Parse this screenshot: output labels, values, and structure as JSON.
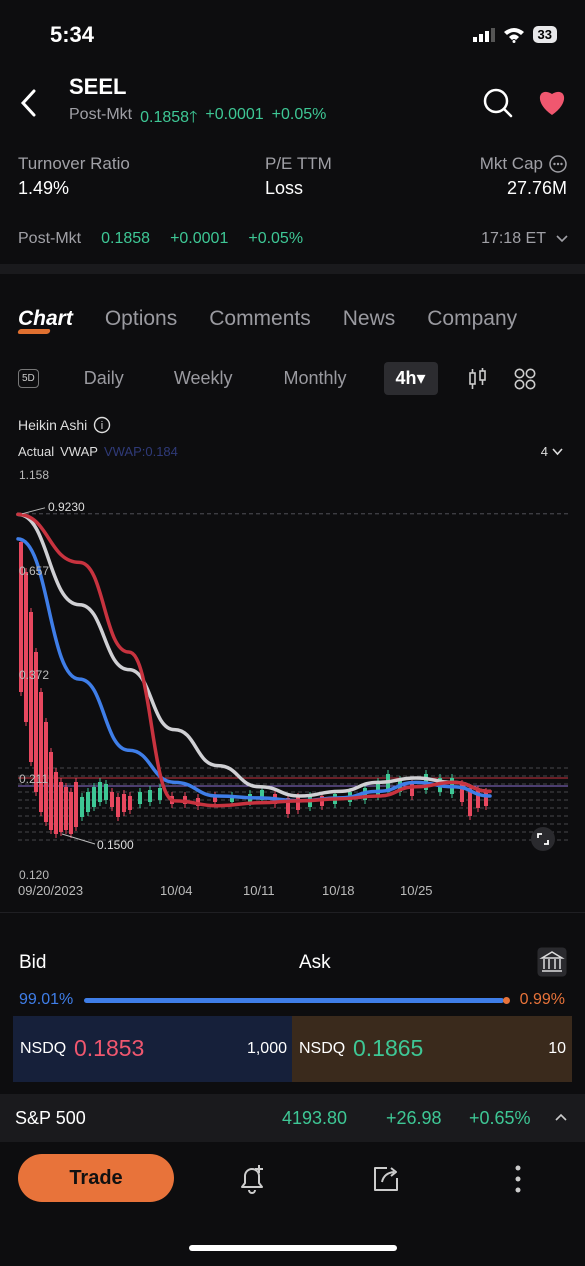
{
  "status": {
    "time": "5:34",
    "battery": "33"
  },
  "header": {
    "ticker": "SEEL",
    "post_label": "Post-Mkt",
    "post_price": "0.1858",
    "post_arrow": "🡑",
    "post_change": "+0.0001",
    "post_pct": "+0.05%"
  },
  "stats": {
    "turnover_label": "Turnover Ratio",
    "turnover_value": "1.49%",
    "pe_label": "P/E TTM",
    "pe_value": "Loss",
    "mktcap_label": "Mkt Cap",
    "mktcap_value": "27.76M"
  },
  "post_line": {
    "label": "Post-Mkt",
    "price": "0.1858",
    "change": "+0.0001",
    "pct": "+0.05%",
    "time": "17:18 ET"
  },
  "tabs": [
    "Chart",
    "Options",
    "Comments",
    "News",
    "Company"
  ],
  "periods": {
    "fiveday": "5D",
    "daily": "Daily",
    "weekly": "Weekly",
    "monthly": "Monthly",
    "active": "4h"
  },
  "chart_meta": {
    "type_label": "Heikin Ashi",
    "actual": "Actual",
    "vwap": "VWAP",
    "vwap_value": "VWAP:0.184",
    "count": "4"
  },
  "chart_data": {
    "type": "line",
    "y_ticks": [
      "1.158",
      "0.657",
      "0.372",
      "0.211",
      "0.120"
    ],
    "x_ticks": [
      "09/20/2023",
      "10/04",
      "10/11",
      "10/18",
      "10/25"
    ],
    "annotations": {
      "high": "0.9230",
      "low": "0.1500"
    },
    "series": [
      {
        "color": "#d0d0d4",
        "values": [
          0.92,
          0.55,
          0.38,
          0.27,
          0.22,
          0.195,
          0.185,
          0.19,
          0.2,
          0.205,
          0.2,
          0.19
        ]
      },
      {
        "color": "#3f7ee8",
        "values": [
          0.8,
          0.36,
          0.24,
          0.2,
          0.185,
          0.183,
          0.18,
          0.183,
          0.19,
          0.2,
          0.195,
          0.185
        ]
      },
      {
        "color": "#c8333f",
        "values": [
          0.92,
          0.7,
          0.42,
          0.18,
          0.175,
          0.178,
          0.18,
          0.182,
          0.185,
          0.195,
          0.2,
          0.19
        ]
      }
    ]
  },
  "bid_ask": {
    "bid_label": "Bid",
    "ask_label": "Ask",
    "bid_pct": "99.01%",
    "ask_pct": "0.99%",
    "bid_exchange": "NSDQ",
    "bid_price": "0.1853",
    "bid_size": "1,000",
    "ask_exchange": "NSDQ",
    "ask_price": "0.1865",
    "ask_size": "10"
  },
  "index": {
    "name": "S&P 500",
    "value": "4193.80",
    "change": "+26.98",
    "pct": "+0.65%"
  },
  "bottom": {
    "trade_label": "Trade"
  },
  "colors": {
    "accent": "#e8733a",
    "up": "#3ec795",
    "down": "#e8485f",
    "blue": "#3f7ee8"
  }
}
